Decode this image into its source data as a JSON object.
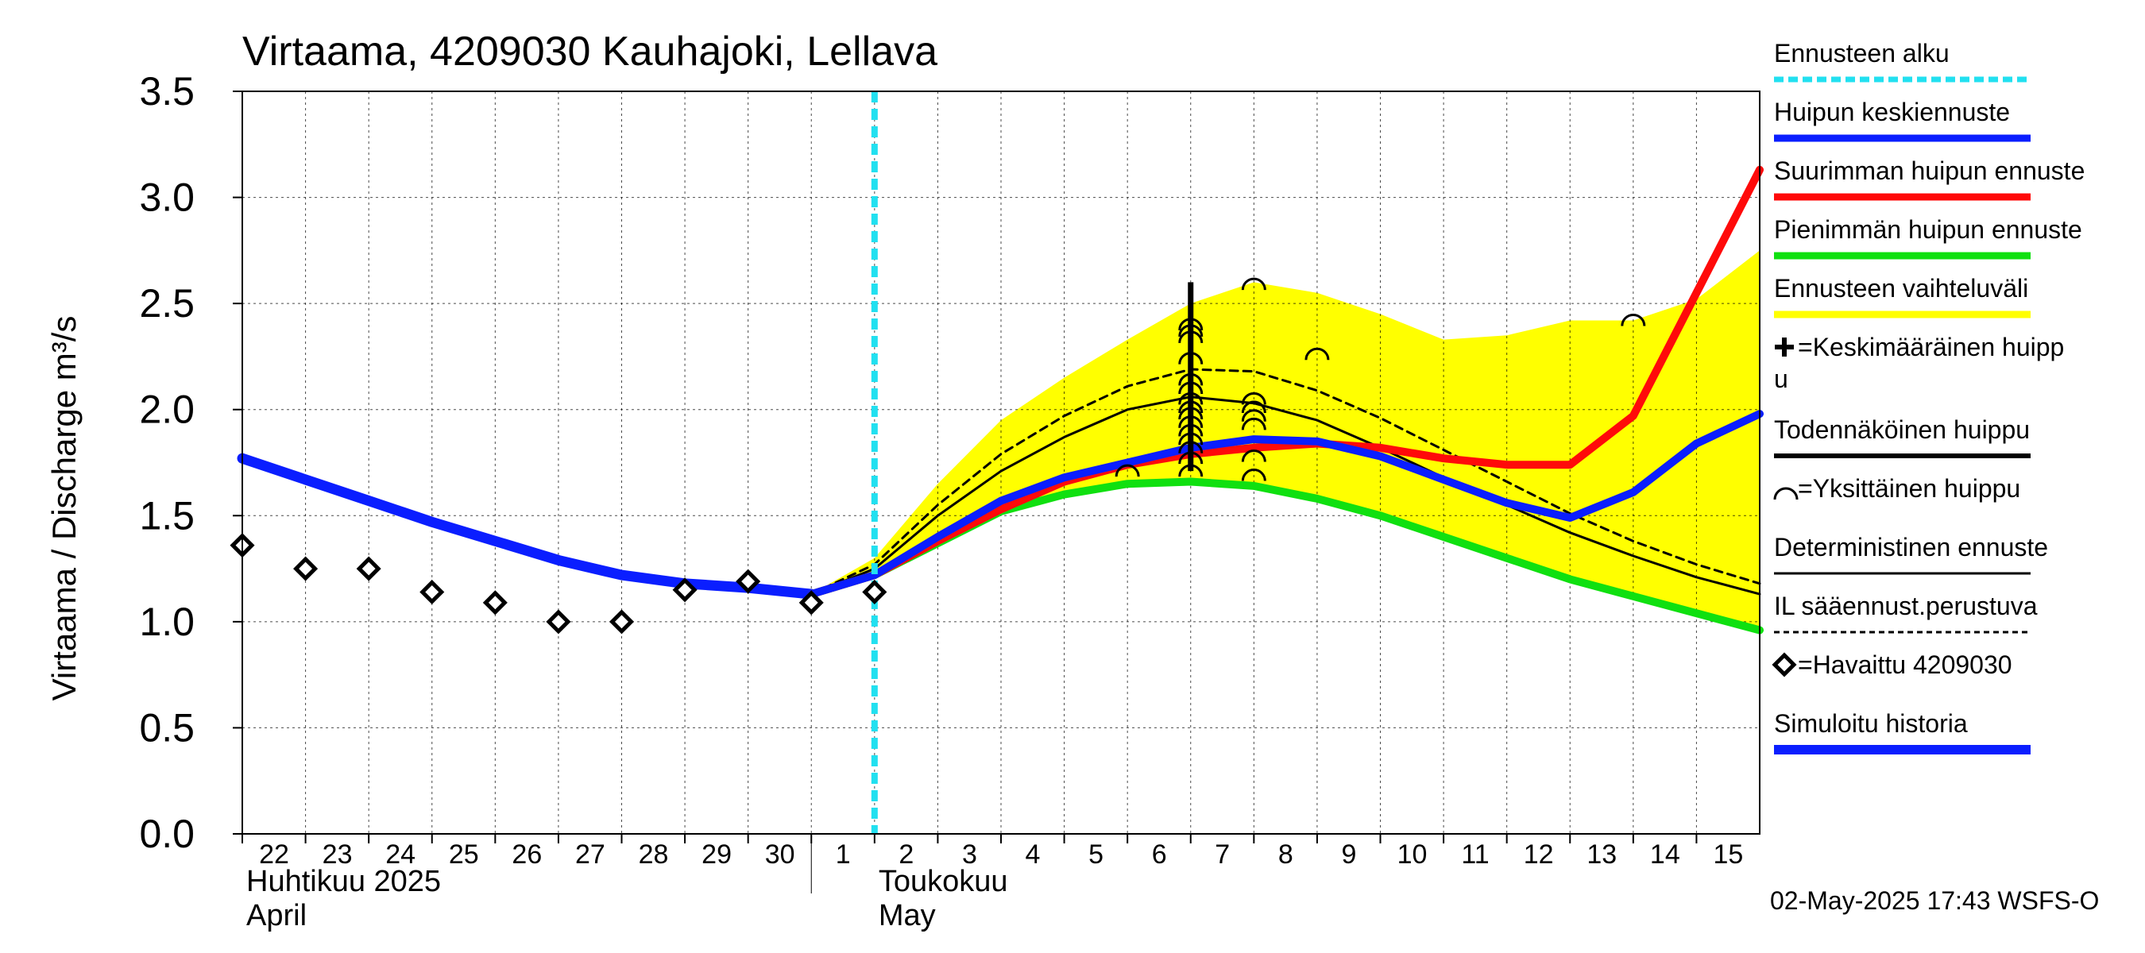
{
  "chart_data": {
    "type": "line",
    "title": "Virtaama, 4209030 Kauhajoki, Lellava",
    "ylabel": "Virtaama / Discharge   m³/s",
    "ylim": [
      0,
      3.5
    ],
    "yticks": [
      "0.0",
      "0.5",
      "1.0",
      "1.5",
      "2.0",
      "2.5",
      "3.0",
      "3.5"
    ],
    "xlim": [
      0,
      24
    ],
    "day_labels": [
      "22",
      "23",
      "24",
      "25",
      "26",
      "27",
      "28",
      "29",
      "30",
      "1",
      "2",
      "3",
      "4",
      "5",
      "6",
      "7",
      "8",
      "9",
      "10",
      "11",
      "12",
      "13",
      "14",
      "15"
    ],
    "month_labels": [
      {
        "line1": "Huhtikuu  2025",
        "line2": "April",
        "at_day": 0
      },
      {
        "line1": "Toukokuu",
        "line2": "May",
        "at_day": 10
      }
    ],
    "forecast_start_x": 10.0,
    "series": {
      "simulated_history": {
        "x": [
          0,
          1,
          2,
          3,
          4,
          5,
          6,
          7,
          8,
          9
        ],
        "y": [
          1.77,
          1.67,
          1.57,
          1.47,
          1.38,
          1.29,
          1.22,
          1.18,
          1.16,
          1.13
        ]
      },
      "observed": {
        "x": [
          0,
          1,
          2,
          3,
          4,
          5,
          6,
          7,
          8,
          9,
          10
        ],
        "y": [
          1.36,
          1.25,
          1.25,
          1.14,
          1.09,
          1.0,
          1.0,
          1.15,
          1.19,
          1.09,
          1.14
        ]
      },
      "range_upper": {
        "x": [
          9,
          10,
          11,
          12,
          13,
          14,
          15,
          16,
          17,
          18,
          19,
          20,
          21,
          22,
          23,
          24
        ],
        "y": [
          1.13,
          1.3,
          1.65,
          1.95,
          2.15,
          2.33,
          2.5,
          2.6,
          2.55,
          2.45,
          2.33,
          2.35,
          2.42,
          2.42,
          2.52,
          2.75
        ]
      },
      "range_lower": {
        "x": [
          9,
          10,
          11,
          12,
          13,
          14,
          15,
          16,
          17,
          18,
          19,
          20,
          21,
          22,
          23,
          24
        ],
        "y": [
          1.13,
          1.22,
          1.37,
          1.52,
          1.6,
          1.65,
          1.66,
          1.64,
          1.58,
          1.5,
          1.4,
          1.3,
          1.2,
          1.12,
          1.04,
          0.96
        ]
      },
      "mean_peak_forecast": {
        "x": [
          9,
          10,
          11,
          12,
          13,
          14,
          15,
          16,
          17,
          18,
          19,
          20,
          21,
          22,
          23,
          24
        ],
        "y": [
          1.13,
          1.22,
          1.4,
          1.57,
          1.68,
          1.75,
          1.82,
          1.86,
          1.85,
          1.78,
          1.67,
          1.56,
          1.49,
          1.61,
          1.84,
          1.98
        ]
      },
      "max_peak_forecast": {
        "x": [
          9,
          10,
          11,
          12,
          13,
          14,
          15,
          16,
          17,
          18,
          19,
          20,
          21,
          22,
          23,
          24
        ],
        "y": [
          1.13,
          1.22,
          1.38,
          1.53,
          1.66,
          1.74,
          1.79,
          1.82,
          1.84,
          1.82,
          1.77,
          1.74,
          1.74,
          1.97,
          2.55,
          3.13
        ]
      },
      "min_peak_forecast": {
        "x": [
          9,
          10,
          11,
          12,
          13,
          14,
          15,
          16,
          17,
          18,
          19,
          20,
          21,
          22,
          23,
          24
        ],
        "y": [
          1.13,
          1.22,
          1.37,
          1.52,
          1.6,
          1.65,
          1.66,
          1.64,
          1.58,
          1.5,
          1.4,
          1.3,
          1.2,
          1.12,
          1.04,
          0.96
        ]
      },
      "deterministic": {
        "x": [
          9,
          10,
          11,
          12,
          13,
          14,
          15,
          16,
          17,
          18,
          19,
          20,
          21,
          22,
          23,
          24
        ],
        "y": [
          1.13,
          1.25,
          1.5,
          1.71,
          1.87,
          2.0,
          2.06,
          2.03,
          1.95,
          1.82,
          1.68,
          1.55,
          1.42,
          1.31,
          1.21,
          1.13
        ]
      },
      "il_weather_based": {
        "x": [
          9,
          10,
          11,
          12,
          13,
          14,
          15,
          16,
          17,
          18,
          19,
          20,
          21,
          22,
          23,
          24
        ],
        "y": [
          1.13,
          1.27,
          1.55,
          1.79,
          1.97,
          2.11,
          2.19,
          2.18,
          2.09,
          1.96,
          1.81,
          1.66,
          1.51,
          1.38,
          1.27,
          1.18
        ]
      },
      "probable_peak": {
        "x": 15.0,
        "y_from": 1.71,
        "y_to": 2.6
      },
      "individual_peaks": {
        "x": [
          14.0,
          15.0,
          15.0,
          15.0,
          15.0,
          15.0,
          15.0,
          15.0,
          15.0,
          15.0,
          15.0,
          15.0,
          15.0,
          15.0,
          15.0,
          15.0,
          16.0,
          16.0,
          16.0,
          16.0,
          16.0,
          16.0,
          16.0,
          17.0,
          22.0
        ],
        "y": [
          1.71,
          1.71,
          1.77,
          1.82,
          1.86,
          1.9,
          1.94,
          1.98,
          2.01,
          2.05,
          2.1,
          2.14,
          2.24,
          2.34,
          2.37,
          2.4,
          1.69,
          1.78,
          1.93,
          1.97,
          2.01,
          2.05,
          2.59,
          2.26,
          2.42
        ]
      }
    },
    "colors": {
      "forecast_start": "#22e0f0",
      "mean_peak": "#0a1eff",
      "max_peak": "#ff0a0a",
      "min_peak": "#10e010",
      "range": "#ffff00",
      "black": "#000000",
      "simulated": "#0a1eff"
    },
    "legend": {
      "placement": "right",
      "items": [
        {
          "label": "Ennusteen alku",
          "style": "cyan-dash"
        },
        {
          "label": "Huipun keskiennuste",
          "style": "blue"
        },
        {
          "label": "Suurimman huipun ennuste",
          "style": "red"
        },
        {
          "label": "Pienimmän huipun ennuste",
          "style": "green"
        },
        {
          "label": "Ennusteen vaihteluväli",
          "style": "yellow"
        },
        {
          "label": "=Keskimääräinen huipp",
          "label2": "u",
          "style": "plus"
        },
        {
          "label": "Todennäköinen huippu",
          "style": "black-thick"
        },
        {
          "label": "=Yksittäinen huippu",
          "style": "arc"
        },
        {
          "label": "Deterministinen ennuste",
          "style": "black-thin"
        },
        {
          "label": "IL sääennust.perustuva",
          "style": "black-dash"
        },
        {
          "label": "=Havaittu 4209030",
          "style": "diamond"
        },
        {
          "label": "Simuloitu historia",
          "style": "blue-thick"
        }
      ]
    },
    "timestamp": "02-May-2025 17:43 WSFS-O"
  }
}
